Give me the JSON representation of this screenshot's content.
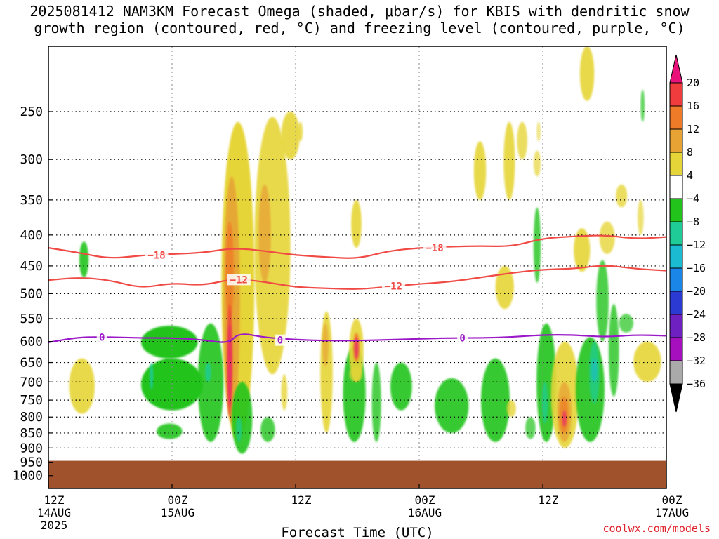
{
  "title_line1": "2025081412 NAM3KM Forecast Omega (shaded, μbar/s) for KBIS with dendritic snow",
  "title_line2": "growth region (contoured, red, °C) and freezing level (contoured, purple, °C)",
  "credit": "coolwx.com/models",
  "chart_data": {
    "type": "heatmap",
    "title": "2025081412 NAM3KM Forecast Omega (shaded, μbar/s) for KBIS with dendritic snow growth region (contoured, red, °C) and freezing level (contoured, purple, °C)",
    "xlabel": "Forecast Time (UTC)",
    "ylabel": "",
    "x_range_hours": [
      0,
      60
    ],
    "x_ticks": [
      {
        "hour": 0,
        "label": "12Z",
        "sub": "14AUG",
        "sub2": "2025"
      },
      {
        "hour": 12,
        "label": "00Z",
        "sub": "15AUG",
        "sub2": ""
      },
      {
        "hour": 24,
        "label": "12Z",
        "sub": "",
        "sub2": ""
      },
      {
        "hour": 36,
        "label": "00Z",
        "sub": "16AUG",
        "sub2": ""
      },
      {
        "hour": 48,
        "label": "12Z",
        "sub": "",
        "sub2": ""
      },
      {
        "hour": 60,
        "label": "00Z",
        "sub": "17AUG",
        "sub2": ""
      }
    ],
    "y_axis": "pressure (hPa), log, reversed",
    "y_range": [
      1050,
      195
    ],
    "y_ticks": [
      250,
      300,
      350,
      400,
      450,
      500,
      550,
      600,
      650,
      700,
      750,
      800,
      850,
      900,
      950,
      1000
    ],
    "grid": true,
    "colorbar": {
      "labels": [
        "20",
        "16",
        "12",
        "8",
        "4",
        "−4",
        "−8",
        "−12",
        "−16",
        "−20",
        "−24",
        "−28",
        "−32",
        "−36"
      ],
      "colors": [
        "#e8127a",
        "#f03c3c",
        "#ef7a28",
        "#e7a434",
        "#e6d539",
        "#ffffff",
        "#22c41c",
        "#1fcc98",
        "#1bbcd2",
        "#1a86e8",
        "#2b3ad2",
        "#6e20c0",
        "#a60fbe",
        "#aaaaaa",
        "#000000"
      ]
    },
    "contours": [
      {
        "label": "−18",
        "color": "#f04a45",
        "points": [
          [
            0,
            420
          ],
          [
            3,
            428
          ],
          [
            6,
            438
          ],
          [
            9,
            432
          ],
          [
            12,
            430
          ],
          [
            15,
            428
          ],
          [
            18,
            420
          ],
          [
            21,
            425
          ],
          [
            24,
            432
          ],
          [
            27,
            435
          ],
          [
            30,
            438
          ],
          [
            33,
            425
          ],
          [
            36,
            420
          ],
          [
            39,
            418
          ],
          [
            42,
            417
          ],
          [
            45,
            418
          ],
          [
            48,
            405
          ],
          [
            51,
            402
          ],
          [
            54,
            400
          ],
          [
            57,
            406
          ],
          [
            60,
            403
          ]
        ],
        "label_at": [
          [
            10.5,
            432
          ],
          [
            37.5,
            420
          ]
        ]
      },
      {
        "label": "−12",
        "color": "#f04a45",
        "points": [
          [
            0,
            475
          ],
          [
            3,
            470
          ],
          [
            6,
            475
          ],
          [
            9,
            490
          ],
          [
            12,
            480
          ],
          [
            15,
            485
          ],
          [
            18,
            472
          ],
          [
            21,
            478
          ],
          [
            24,
            488
          ],
          [
            27,
            490
          ],
          [
            30,
            492
          ],
          [
            33,
            487
          ],
          [
            36,
            482
          ],
          [
            39,
            478
          ],
          [
            42,
            470
          ],
          [
            45,
            462
          ],
          [
            48,
            456
          ],
          [
            51,
            455
          ],
          [
            54,
            448
          ],
          [
            57,
            455
          ],
          [
            60,
            458
          ]
        ],
        "label_at": [
          [
            18.5,
            474
          ],
          [
            33.5,
            486
          ]
        ]
      },
      {
        "label": "0",
        "color": "#9b18c8",
        "points": [
          [
            0,
            602
          ],
          [
            3,
            590
          ],
          [
            6,
            590
          ],
          [
            9,
            592
          ],
          [
            12,
            592
          ],
          [
            15,
            596
          ],
          [
            17.5,
            605
          ],
          [
            18.5,
            580
          ],
          [
            21,
            591
          ],
          [
            24,
            596
          ],
          [
            27,
            598
          ],
          [
            30,
            598
          ],
          [
            33,
            596
          ],
          [
            36,
            594
          ],
          [
            39,
            592
          ],
          [
            42,
            592
          ],
          [
            45,
            590
          ],
          [
            48,
            585
          ],
          [
            51,
            585
          ],
          [
            54,
            590
          ],
          [
            57,
            585
          ],
          [
            60,
            587
          ]
        ],
        "label_at": [
          [
            5.2,
            590
          ],
          [
            22.5,
            597
          ],
          [
            40.2,
            592
          ]
        ]
      }
    ],
    "surface_below_hpa": 945
  }
}
